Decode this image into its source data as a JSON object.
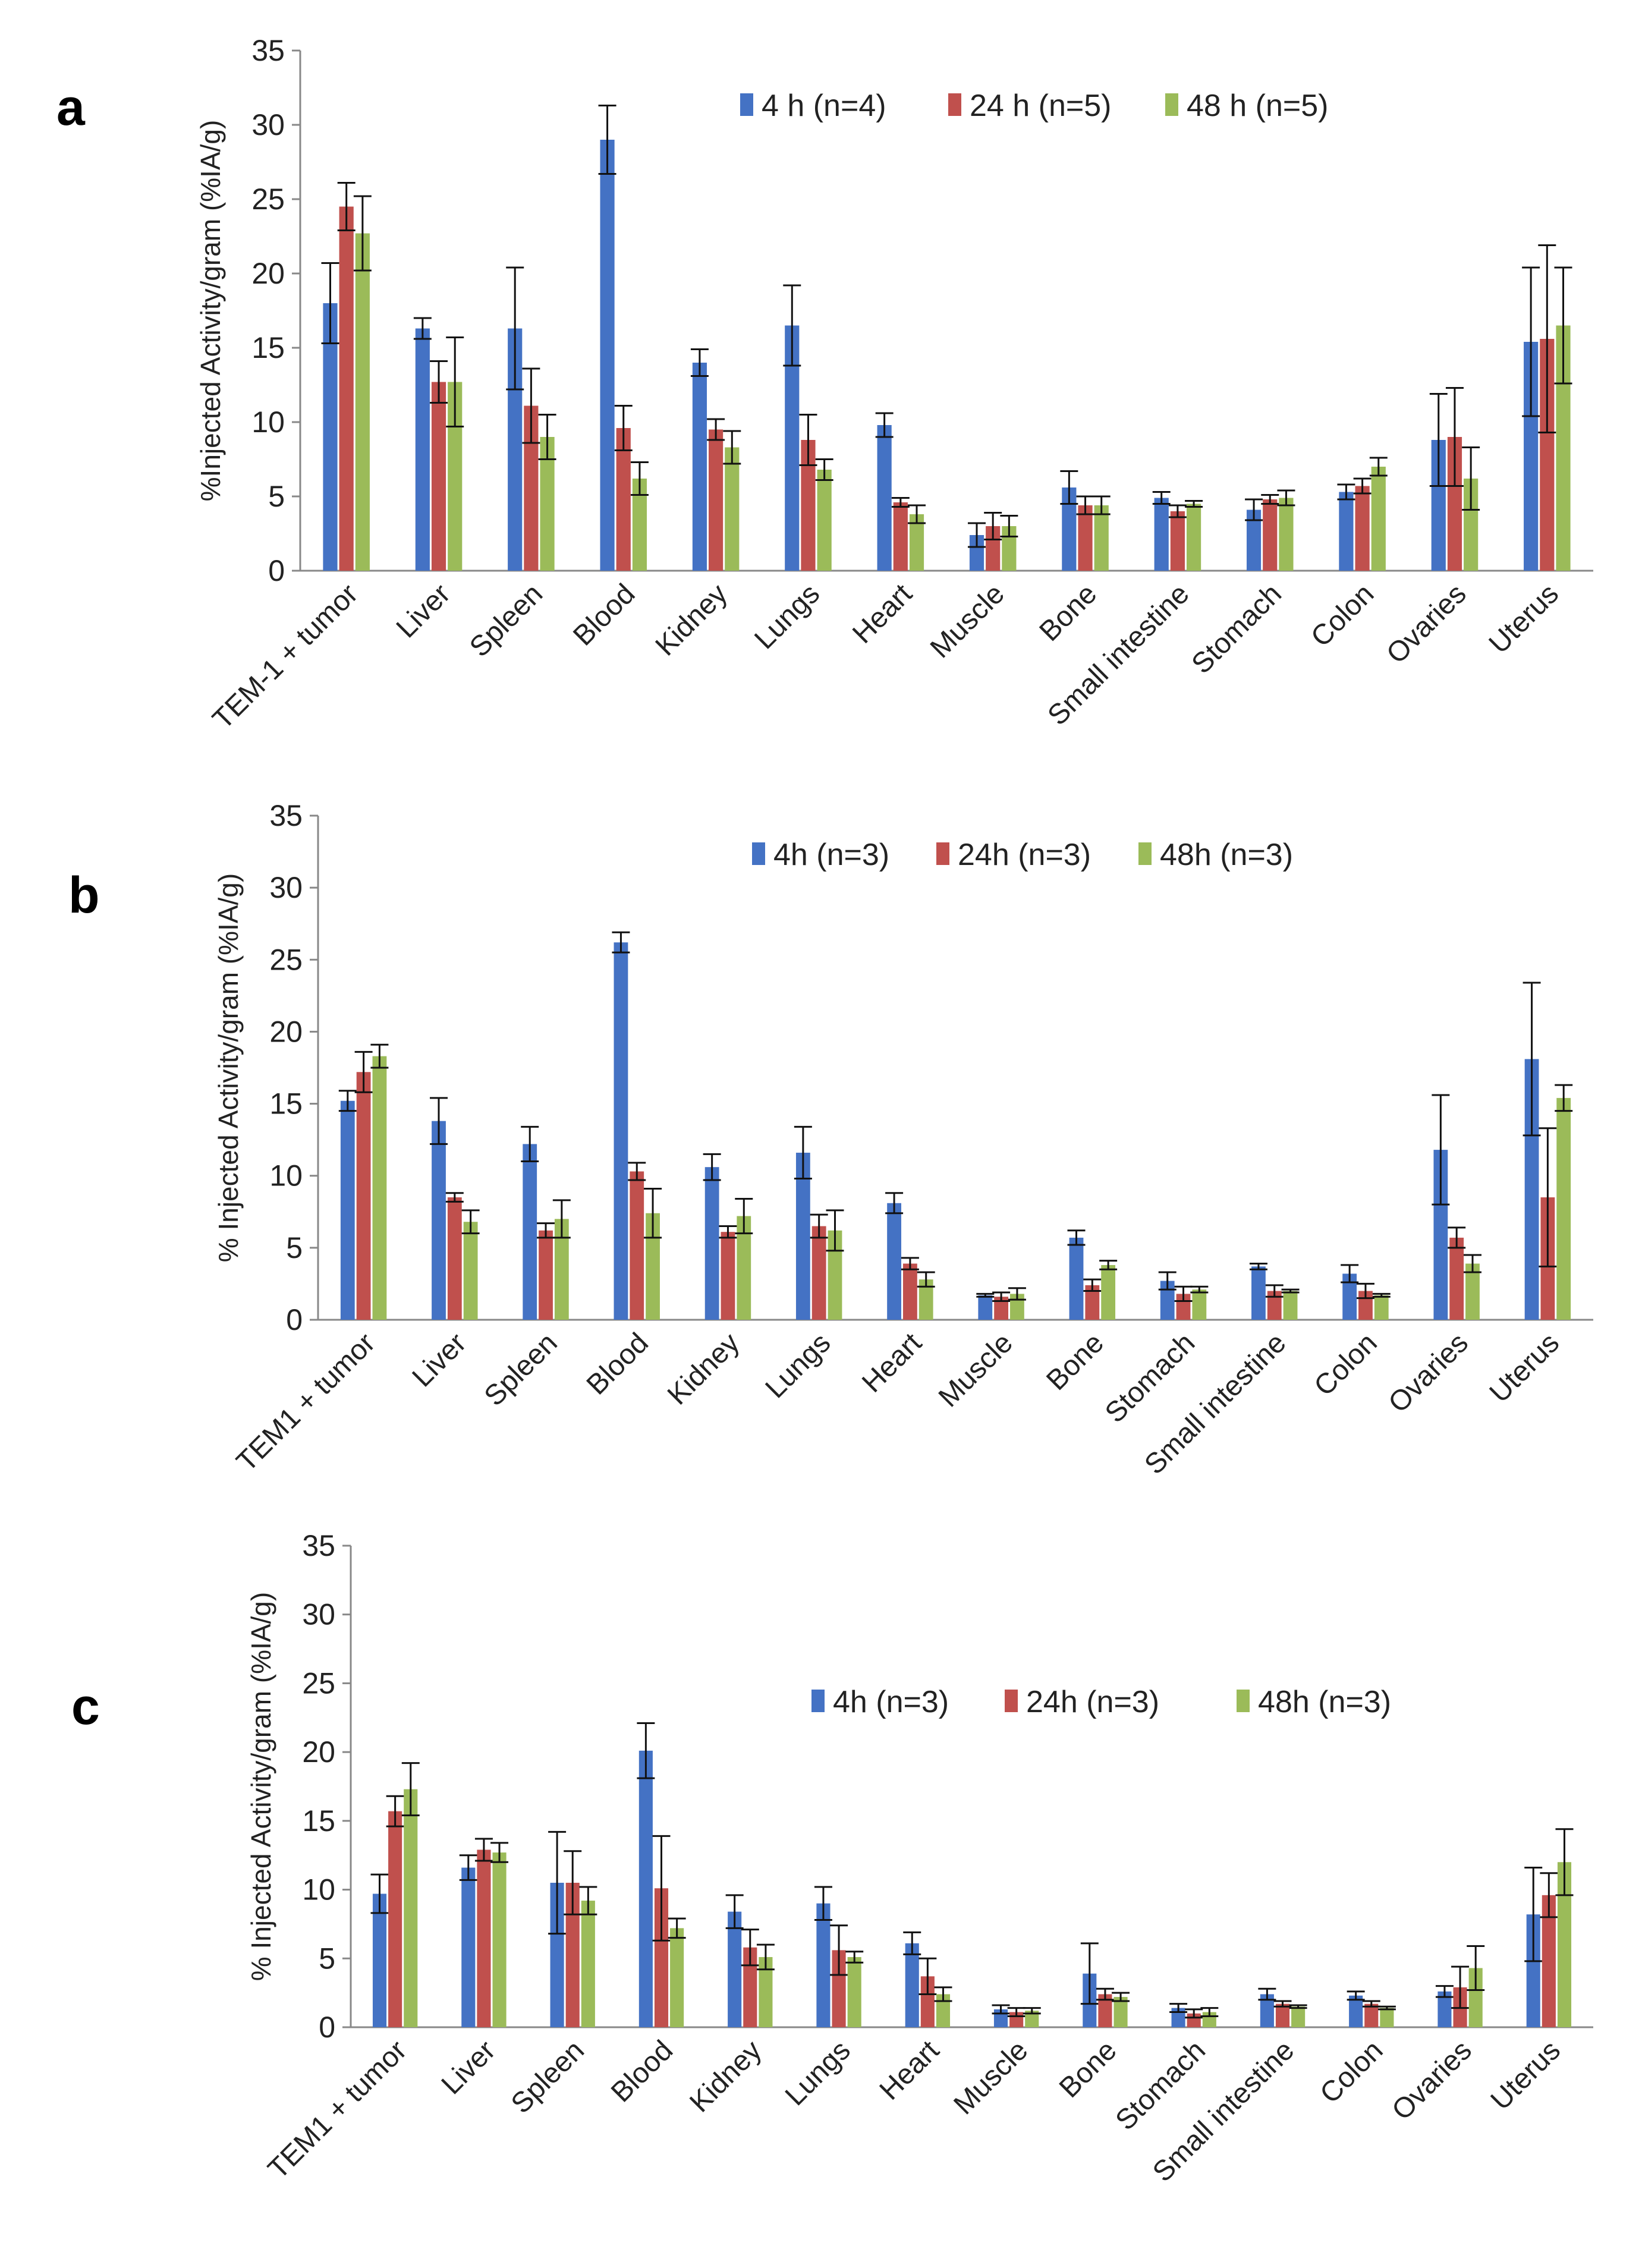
{
  "chart_data": [
    {
      "type": "bar",
      "panel": "a",
      "ylabel": "%Injected Activity/gram (%IA/g)",
      "ylim": [
        0,
        35
      ],
      "yticks": [
        0,
        5,
        10,
        15,
        20,
        25,
        30,
        35
      ],
      "categories": [
        "TEM-1 + tumor",
        "Liver",
        "Spleen",
        "Blood",
        "Kidney",
        "Lungs",
        "Heart",
        "Muscle",
        "Bone",
        "Small intestine",
        "Stomach",
        "Colon",
        "Ovaries",
        "Uterus"
      ],
      "legend_position": "top-right",
      "series": [
        {
          "name": "4 h (n=4)",
          "color": "#4472C4",
          "values": [
            18.0,
            16.3,
            16.3,
            29.0,
            14.0,
            16.5,
            9.8,
            2.4,
            5.6,
            4.9,
            4.1,
            5.3,
            8.8,
            15.4
          ],
          "errors": [
            2.7,
            0.7,
            4.1,
            2.3,
            0.9,
            2.7,
            0.8,
            0.8,
            1.1,
            0.4,
            0.7,
            0.5,
            3.1,
            5.0
          ]
        },
        {
          "name": "24 h (n=5)",
          "color": "#C0504D",
          "values": [
            24.5,
            12.7,
            11.1,
            9.6,
            9.5,
            8.8,
            4.6,
            3.0,
            4.4,
            4.0,
            4.8,
            5.7,
            9.0,
            15.6
          ],
          "errors": [
            1.6,
            1.4,
            2.5,
            1.5,
            0.7,
            1.7,
            0.3,
            0.9,
            0.6,
            0.4,
            0.3,
            0.5,
            3.3,
            6.3
          ]
        },
        {
          "name": "48 h (n=5)",
          "color": "#9BBB59",
          "values": [
            22.7,
            12.7,
            9.0,
            6.2,
            8.3,
            6.8,
            3.8,
            3.0,
            4.4,
            4.5,
            4.9,
            7.0,
            6.2,
            16.5
          ],
          "errors": [
            2.5,
            3.0,
            1.5,
            1.1,
            1.1,
            0.7,
            0.6,
            0.7,
            0.6,
            0.2,
            0.5,
            0.6,
            2.1,
            3.9
          ]
        }
      ]
    },
    {
      "type": "bar",
      "panel": "b",
      "ylabel": "% Injected Activity/gram (%IA/g)",
      "ylim": [
        0,
        35
      ],
      "yticks": [
        0,
        5,
        10,
        15,
        20,
        25,
        30,
        35
      ],
      "categories": [
        "TEM1 + tumor",
        "Liver",
        "Spleen",
        "Blood",
        "Kidney",
        "Lungs",
        "Heart",
        "Muscle",
        "Bone",
        "Stomach",
        "Small intestine",
        "Colon",
        "Ovaries",
        "Uterus"
      ],
      "legend_position": "top-right",
      "series": [
        {
          "name": "4h (n=3)",
          "color": "#4472C4",
          "values": [
            15.2,
            13.8,
            12.2,
            26.2,
            10.6,
            11.6,
            8.1,
            1.7,
            5.7,
            2.7,
            3.7,
            3.2,
            11.8,
            18.1
          ],
          "errors": [
            0.7,
            1.6,
            1.2,
            0.7,
            0.9,
            1.8,
            0.7,
            0.1,
            0.5,
            0.6,
            0.2,
            0.6,
            3.8,
            5.3
          ]
        },
        {
          "name": "24h (n=3)",
          "color": "#C0504D",
          "values": [
            17.2,
            8.5,
            6.2,
            10.3,
            6.1,
            6.5,
            3.9,
            1.6,
            2.4,
            1.8,
            2.0,
            2.0,
            5.7,
            8.5
          ],
          "errors": [
            1.4,
            0.3,
            0.5,
            0.6,
            0.4,
            0.8,
            0.4,
            0.3,
            0.4,
            0.5,
            0.4,
            0.5,
            0.7,
            4.8
          ]
        },
        {
          "name": "48h (n=3)",
          "color": "#9BBB59",
          "values": [
            18.3,
            6.8,
            7.0,
            7.4,
            7.2,
            6.2,
            2.8,
            1.8,
            3.8,
            2.1,
            2.0,
            1.7,
            3.9,
            15.4
          ],
          "errors": [
            0.8,
            0.8,
            1.3,
            1.7,
            1.2,
            1.4,
            0.5,
            0.4,
            0.3,
            0.2,
            0.1,
            0.1,
            0.6,
            0.9
          ]
        }
      ]
    },
    {
      "type": "bar",
      "panel": "c",
      "ylabel": "% Injected Activity/gram (%IA/g)",
      "ylim": [
        0,
        35
      ],
      "yticks": [
        0,
        5,
        10,
        15,
        20,
        25,
        30,
        35
      ],
      "categories": [
        "TEM1 + tumor",
        "Liver",
        "Spleen",
        "Blood",
        "Kidney",
        "Lungs",
        "Heart",
        "Muscle",
        "Bone",
        "Stomach",
        "Small intestine",
        "Colon",
        "Ovaries",
        "Uterus"
      ],
      "legend_position": "top-right",
      "series": [
        {
          "name": "4h (n=3)",
          "color": "#4472C4",
          "values": [
            9.7,
            11.6,
            10.5,
            20.1,
            8.4,
            9.0,
            6.1,
            1.3,
            3.9,
            1.4,
            2.4,
            2.3,
            2.6,
            8.2
          ],
          "errors": [
            1.4,
            0.9,
            3.7,
            2.0,
            1.2,
            1.2,
            0.8,
            0.3,
            2.2,
            0.3,
            0.4,
            0.3,
            0.4,
            3.4
          ]
        },
        {
          "name": "24h (n=3)",
          "color": "#C0504D",
          "values": [
            15.7,
            12.9,
            10.5,
            10.1,
            5.8,
            5.6,
            3.7,
            1.1,
            2.4,
            1.0,
            1.7,
            1.7,
            2.9,
            9.6
          ],
          "errors": [
            1.1,
            0.8,
            2.3,
            3.8,
            1.3,
            1.8,
            1.3,
            0.3,
            0.4,
            0.3,
            0.2,
            0.2,
            1.5,
            1.6
          ]
        },
        {
          "name": "48h (n=3)",
          "color": "#9BBB59",
          "values": [
            17.3,
            12.7,
            9.2,
            7.2,
            5.1,
            5.1,
            2.4,
            1.2,
            2.2,
            1.1,
            1.5,
            1.4,
            4.3,
            12.0
          ],
          "errors": [
            1.9,
            0.7,
            1.0,
            0.7,
            0.9,
            0.4,
            0.5,
            0.2,
            0.3,
            0.3,
            0.1,
            0.1,
            1.6,
            2.4
          ]
        }
      ]
    }
  ]
}
